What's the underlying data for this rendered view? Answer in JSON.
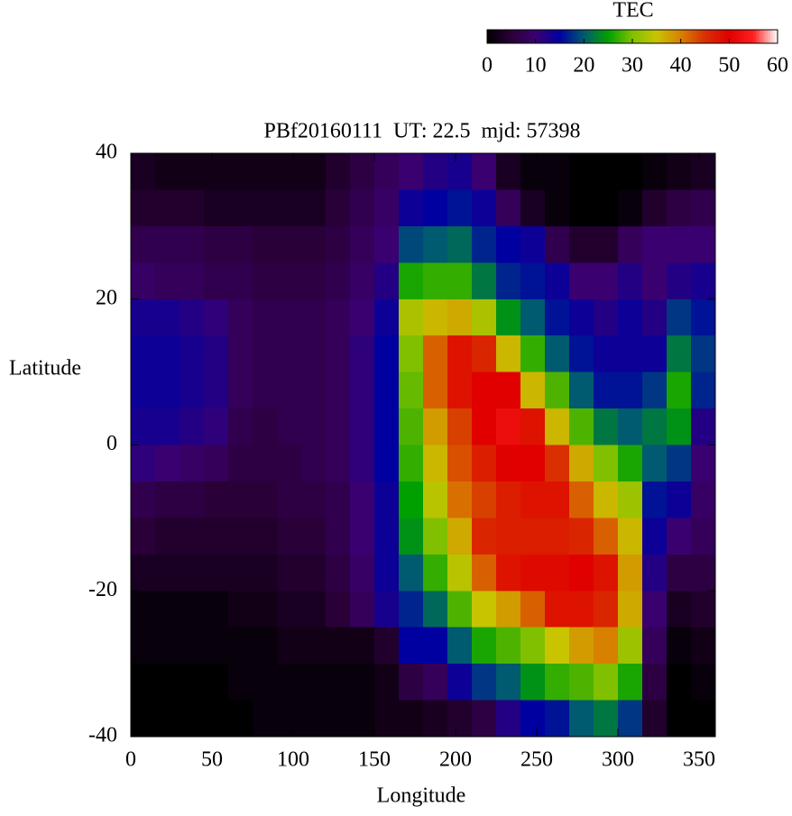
{
  "chart_data": {
    "type": "heatmap",
    "title": "PBf20160111  UT: 22.5  mjd: 57398",
    "xlabel": "Longitude",
    "ylabel": "Latitude",
    "xlim": [
      0,
      360
    ],
    "ylim": [
      -40,
      40
    ],
    "xticks": [
      0,
      50,
      100,
      150,
      200,
      250,
      300,
      350
    ],
    "yticks": [
      -40,
      -20,
      0,
      20,
      40
    ],
    "x": [
      7.5,
      22.5,
      37.5,
      52.5,
      67.5,
      82.5,
      97.5,
      112.5,
      127.5,
      142.5,
      157.5,
      172.5,
      187.5,
      202.5,
      217.5,
      232.5,
      247.5,
      262.5,
      277.5,
      292.5,
      307.5,
      322.5,
      337.5,
      352.5
    ],
    "y": [
      37.5,
      32.5,
      27.5,
      22.5,
      17.5,
      12.5,
      7.5,
      2.5,
      -2.5,
      -7.5,
      -12.5,
      -17.5,
      -22.5,
      -27.5,
      -32.5,
      -37.5
    ],
    "values": [
      [
        3,
        2,
        2,
        2,
        2,
        2,
        2,
        2,
        4,
        6,
        8,
        10,
        12,
        13,
        10,
        3,
        1,
        1,
        0,
        0,
        0,
        1,
        2,
        3
      ],
      [
        4,
        4,
        4,
        3,
        3,
        3,
        3,
        3,
        5,
        7,
        9,
        14,
        15,
        16,
        14,
        8,
        3,
        1,
        0,
        0,
        1,
        4,
        6,
        7
      ],
      [
        7,
        7,
        7,
        6,
        6,
        5,
        5,
        5,
        6,
        8,
        10,
        19,
        20,
        21,
        17,
        15,
        14,
        7,
        4,
        4,
        8,
        10,
        10,
        10
      ],
      [
        9,
        8,
        8,
        7,
        7,
        6,
        6,
        6,
        7,
        9,
        12,
        26,
        27,
        27,
        22,
        17,
        16,
        14,
        10,
        10,
        12,
        10,
        12,
        13
      ],
      [
        13,
        13,
        12,
        11,
        8,
        7,
        7,
        7,
        8,
        10,
        14,
        33,
        36,
        37,
        33,
        24,
        20,
        16,
        14,
        12,
        14,
        12,
        18,
        16
      ],
      [
        14,
        14,
        13,
        12,
        8,
        7,
        7,
        7,
        8,
        11,
        15,
        30,
        42,
        48,
        46,
        36,
        27,
        20,
        16,
        14,
        14,
        14,
        22,
        18
      ],
      [
        14,
        14,
        13,
        12,
        8,
        7,
        7,
        7,
        8,
        11,
        15,
        29,
        42,
        48,
        50,
        50,
        36,
        28,
        20,
        16,
        16,
        18,
        26,
        17
      ],
      [
        13,
        13,
        12,
        11,
        7,
        6,
        7,
        7,
        8,
        11,
        15,
        28,
        38,
        44,
        50,
        52,
        48,
        36,
        28,
        22,
        20,
        22,
        24,
        12
      ],
      [
        11,
        10,
        9,
        8,
        6,
        6,
        6,
        7,
        8,
        11,
        15,
        27,
        36,
        43,
        47,
        50,
        50,
        45,
        37,
        30,
        26,
        20,
        18,
        10
      ],
      [
        7,
        6,
        6,
        5,
        5,
        5,
        6,
        6,
        7,
        10,
        14,
        25,
        34,
        41,
        44,
        47,
        48,
        48,
        42,
        36,
        32,
        16,
        14,
        9
      ],
      [
        5,
        4,
        4,
        4,
        4,
        4,
        5,
        5,
        7,
        10,
        14,
        24,
        30,
        37,
        46,
        47,
        47,
        47,
        46,
        42,
        36,
        14,
        10,
        8
      ],
      [
        3,
        3,
        3,
        3,
        3,
        3,
        4,
        4,
        6,
        9,
        14,
        20,
        27,
        34,
        42,
        48,
        49,
        49,
        50,
        48,
        38,
        12,
        6,
        6
      ],
      [
        1,
        1,
        1,
        1,
        2,
        2,
        3,
        3,
        5,
        8,
        13,
        17,
        21,
        28,
        35,
        38,
        42,
        48,
        48,
        46,
        37,
        10,
        3,
        4
      ],
      [
        1,
        1,
        1,
        1,
        1,
        1,
        2,
        2,
        2,
        2,
        4,
        15,
        15,
        20,
        26,
        28,
        30,
        35,
        38,
        40,
        32,
        8,
        1,
        2
      ],
      [
        0,
        0,
        0,
        0,
        1,
        1,
        1,
        1,
        1,
        1,
        2,
        6,
        8,
        14,
        18,
        20,
        24,
        27,
        28,
        30,
        26,
        6,
        0,
        1
      ],
      [
        0,
        0,
        0,
        0,
        0,
        1,
        1,
        1,
        1,
        1,
        2,
        2,
        3,
        4,
        6,
        12,
        15,
        16,
        20,
        22,
        18,
        4,
        0,
        0
      ]
    ],
    "colorbar_label": "TEC",
    "clim": [
      0,
      60
    ],
    "cticks": [
      0,
      10,
      20,
      30,
      40,
      50,
      60
    ],
    "colorscale": [
      "#000000",
      "#2a0038",
      "#3a0070",
      "#0000a0",
      "#005a70",
      "#00a000",
      "#80c000",
      "#c8c400",
      "#d88000",
      "#d83000",
      "#e00000",
      "#ff2020",
      "#ffffff"
    ]
  }
}
